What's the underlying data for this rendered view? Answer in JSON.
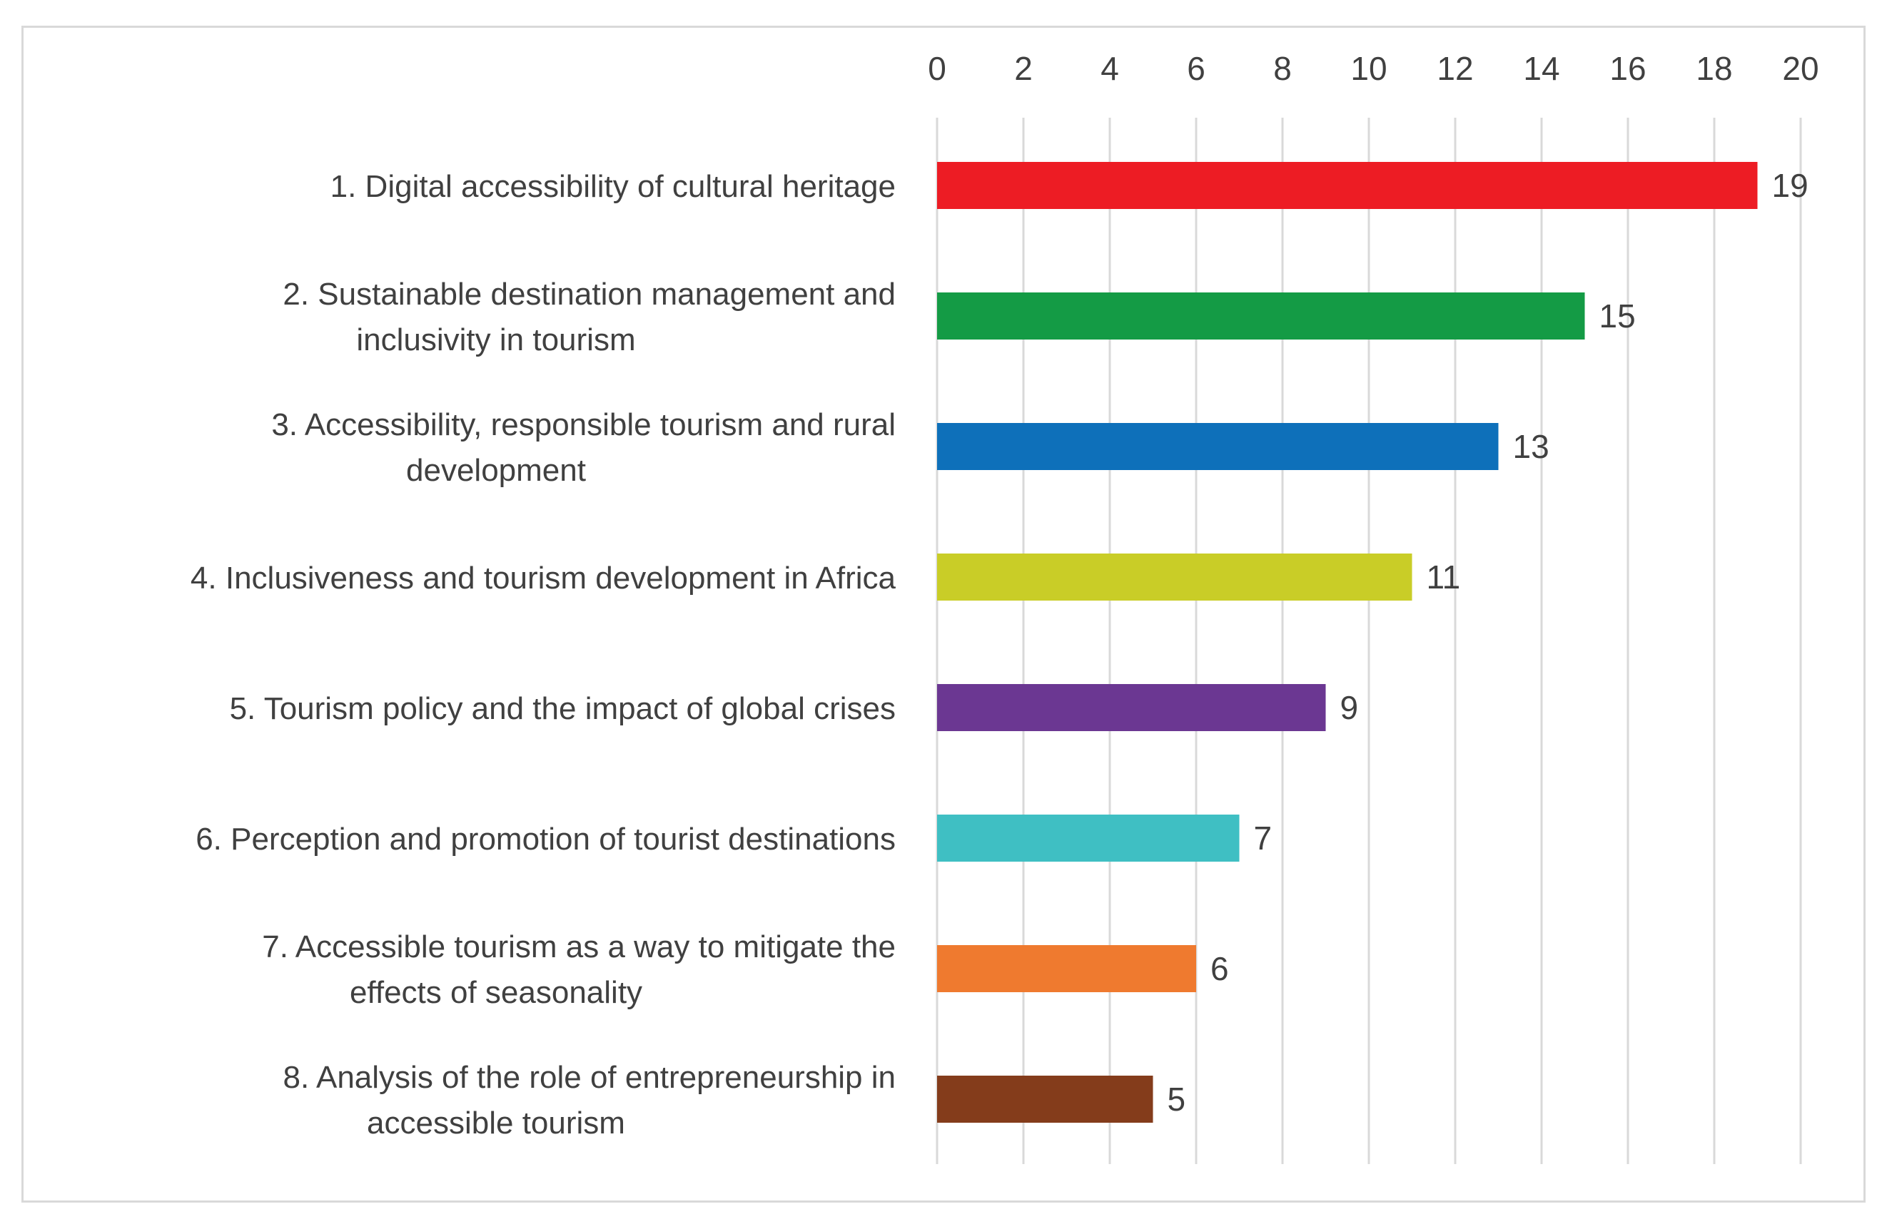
{
  "chart_data": {
    "type": "bar",
    "orientation": "horizontal",
    "title": "",
    "xlabel": "",
    "ylabel": "",
    "xlim": [
      0,
      20
    ],
    "x_ticks": [
      "0",
      "2",
      "4",
      "6",
      "8",
      "10",
      "12",
      "14",
      "16",
      "18",
      "20"
    ],
    "x_axis_position": "top",
    "grid": true,
    "categories": [
      "1. Digital accessibility of cultural heritage",
      "2. Sustainable destination management and inclusivity in tourism",
      "3. Accessibility, responsible tourism and rural development",
      "4. Inclusiveness and tourism development in Africa",
      "5. Tourism policy and the impact of global crises",
      "6. Perception and promotion of tourist destinations",
      "7. Accessible tourism as a way to mitigate the effects of seasonality",
      "8. Analysis of the role of entrepreneurship in accessible tourism"
    ],
    "values": [
      19,
      15,
      13,
      11,
      9,
      7,
      6,
      5
    ],
    "data_labels": [
      "19",
      "15",
      "13",
      "11",
      "9",
      "7",
      "6",
      "5"
    ],
    "bar_colors": [
      "#ed1c24",
      "#149b45",
      "#0e70ba",
      "#c9cd27",
      "#6b3792",
      "#3fbfc3",
      "#ef7a2f",
      "#843c1b"
    ],
    "grid_color": "#d9d9d9"
  }
}
